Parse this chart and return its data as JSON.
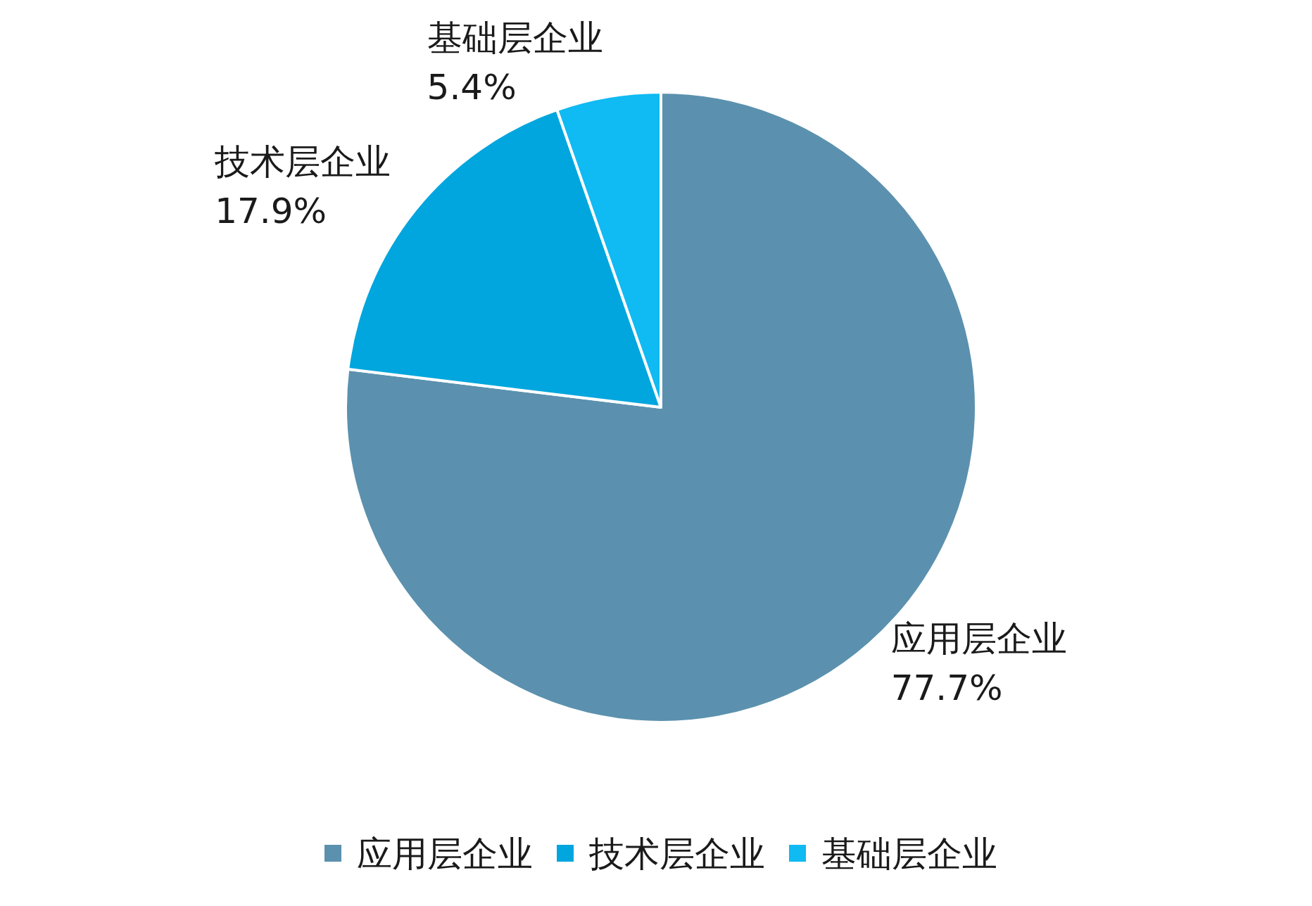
{
  "chart_data": {
    "type": "pie",
    "categories": [
      "应用层企业",
      "技术层企业",
      "基础层企业"
    ],
    "values": [
      77.7,
      17.9,
      5.4
    ],
    "colors": [
      "#5b91ae",
      "#02a6de",
      "#10baf2"
    ],
    "value_labels": [
      "77.7%",
      "17.9%",
      "5.4%"
    ],
    "legend": "bottom"
  }
}
